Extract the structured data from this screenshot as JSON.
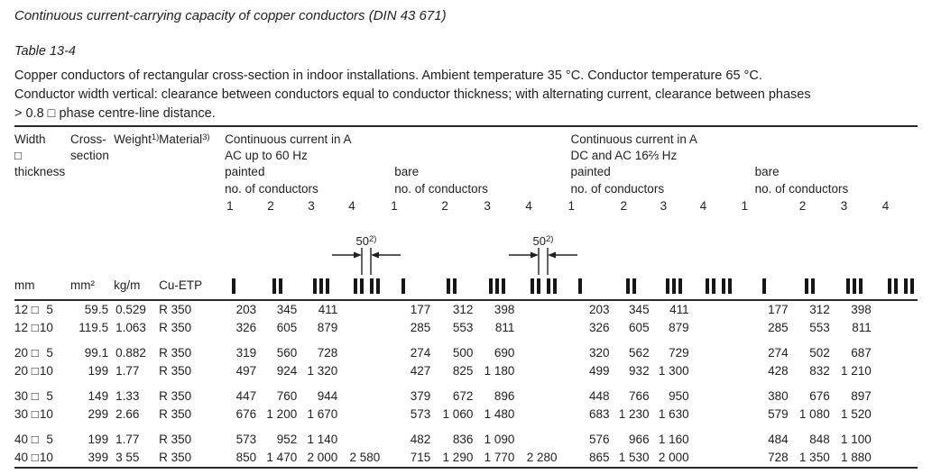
{
  "doc": {
    "title": "Continuous current-carrying capacity of copper conductors (DIN 43 671)",
    "table_label": "Table 13-4",
    "description_lines": [
      "Copper conductors of rectangular cross-section in indoor installations. Ambient temperature 35 °C. Conductor temperature 65 °C.",
      "Conductor width vertical: clearance between conductors equal to conductor thickness; with alternating current, clearance between phases",
      "> 0.8 □ phase centre-line distance."
    ]
  },
  "table": {
    "headers": {
      "size_lines": [
        "Width",
        "□",
        "thickness"
      ],
      "cross_lines": [
        "Cross-",
        "section"
      ],
      "weight": {
        "text": "Weight",
        "sup": "1)"
      },
      "material": {
        "text": "Material",
        "sup": "3)"
      },
      "group_ac": {
        "line1": "Continuous current in A",
        "line2": "AC up to 60 Hz"
      },
      "group_dc": {
        "line1": "Continuous current in A",
        "line2": "DC and AC 16⅔ Hz"
      },
      "painted": "painted",
      "bare": "bare",
      "no_of_conductors": "no. of conductors",
      "counts": [
        "1",
        "2",
        "3",
        "4"
      ]
    },
    "dimension": {
      "text": "50",
      "sup": "2)"
    },
    "units": {
      "size": "mm",
      "cross_section": "mm²",
      "weight": "kg/m",
      "material": "Cu-ETP"
    },
    "size_separator": "□",
    "conductor_icons": [
      {
        "name": "one-conductor-bar",
        "bars": 1,
        "split": false
      },
      {
        "name": "two-conductor-bars",
        "bars": 2,
        "split": false
      },
      {
        "name": "three-conductor-bars",
        "bars": 3,
        "split": false
      },
      {
        "name": "four-conductor-bars-paired",
        "bars": 4,
        "split": true
      }
    ],
    "rows": [
      {
        "width": "12",
        "thickness": "5",
        "cross_section": "59.5",
        "weight": "0.529",
        "material": "R 350",
        "currents": [
          "203",
          "345",
          "411",
          "",
          "177",
          "312",
          "398",
          "",
          "203",
          "345",
          "411",
          "",
          "177",
          "312",
          "398",
          ""
        ]
      },
      {
        "width": "12",
        "thickness": "10",
        "cross_section": "119.5",
        "weight": "1.063",
        "material": "R 350",
        "currents": [
          "326",
          "605",
          "879",
          "",
          "285",
          "553",
          "811",
          "",
          "326",
          "605",
          "879",
          "",
          "285",
          "553",
          "811",
          ""
        ]
      },
      {
        "width": "20",
        "thickness": "5",
        "cross_section": "99.1",
        "weight": "0.882",
        "material": "R 350",
        "currents": [
          "319",
          "560",
          "728",
          "",
          "274",
          "500",
          "690",
          "",
          "320",
          "562",
          "729",
          "",
          "274",
          "502",
          "687",
          ""
        ]
      },
      {
        "width": "20",
        "thickness": "10",
        "cross_section": "199",
        "weight": "1.77",
        "material": "R 350",
        "currents": [
          "497",
          "924",
          "1 320",
          "",
          "427",
          "825",
          "1 180",
          "",
          "499",
          "932",
          "1 300",
          "",
          "428",
          "832",
          "1 210",
          ""
        ]
      },
      {
        "width": "30",
        "thickness": "5",
        "cross_section": "149",
        "weight": "1.33",
        "material": "R 350",
        "currents": [
          "447",
          "760",
          "944",
          "",
          "379",
          "672",
          "896",
          "",
          "448",
          "766",
          "950",
          "",
          "380",
          "676",
          "897",
          ""
        ]
      },
      {
        "width": "30",
        "thickness": "10",
        "cross_section": "299",
        "weight": "2.66",
        "material": "R 350",
        "currents": [
          "676",
          "1 200",
          "1 670",
          "",
          "573",
          "1 060",
          "1 480",
          "",
          "683",
          "1 230",
          "1 630",
          "",
          "579",
          "1 080",
          "1 520",
          ""
        ]
      },
      {
        "width": "40",
        "thickness": "5",
        "cross_section": "199",
        "weight": "1.77",
        "material": "R 350",
        "currents": [
          "573",
          "952",
          "1 140",
          "",
          "482",
          "836",
          "1 090",
          "",
          "576",
          "966",
          "1 160",
          "",
          "484",
          "848",
          "1 100",
          ""
        ]
      },
      {
        "width": "40",
        "thickness": "10",
        "cross_section": "399",
        "weight": "3 55",
        "material": "R 350",
        "currents": [
          "850",
          "1 470",
          "2 000",
          "2 580",
          "715",
          "1 290",
          "1 770",
          "2 280",
          "865",
          "1 530",
          "2 000",
          "",
          "728",
          "1 350",
          "1 880",
          ""
        ]
      }
    ]
  }
}
